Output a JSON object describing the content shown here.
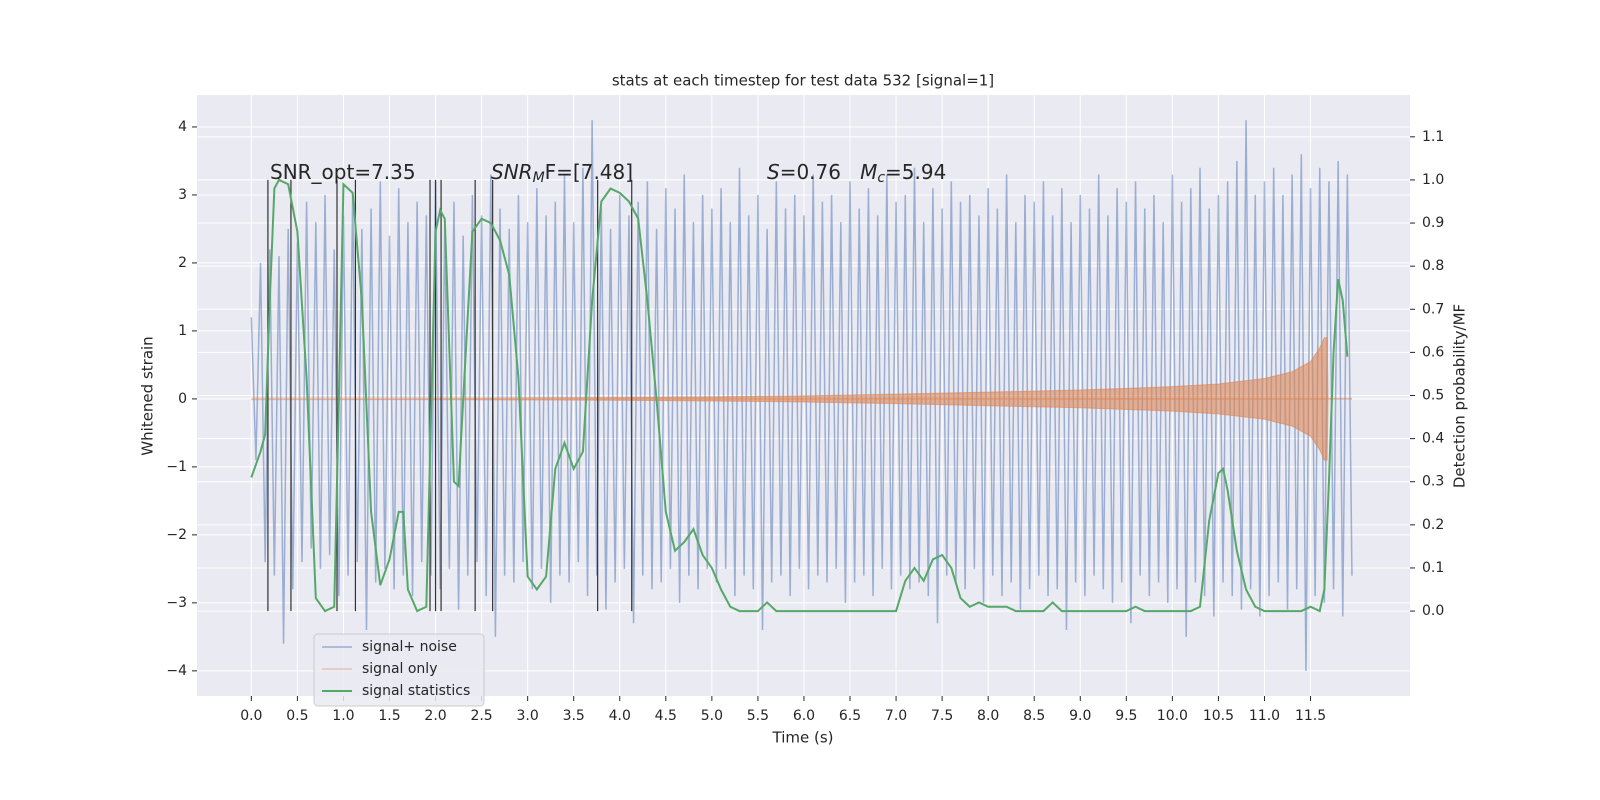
{
  "chart_data": {
    "type": "line",
    "title": "stats at each timestep for test data 532 [signal=1]",
    "x_label": "Time (s)",
    "y_label": "Whitened strain",
    "y2_label": "Detection probability/MF",
    "xlim": [
      -0.59,
      12.58
    ],
    "ylim": [
      -4.37,
      4.47
    ],
    "y2lim": [
      -0.197,
      1.197
    ],
    "grid": true,
    "legend": "lower left",
    "xticks": [
      {
        "value": 0,
        "label": "0.0"
      },
      0.5,
      {
        "value": 1,
        "label": "1.0"
      },
      1.5,
      {
        "value": 2,
        "label": "2.0"
      },
      2.5,
      {
        "value": 3,
        "label": "3.0"
      },
      3.5,
      {
        "value": 4,
        "label": "4.0"
      },
      4.5,
      {
        "value": 5,
        "label": "5.0"
      },
      5.5,
      {
        "value": 6,
        "label": "6.0"
      },
      6.5,
      {
        "value": 7,
        "label": "7.0"
      },
      7.5,
      {
        "value": 8,
        "label": "8.0"
      },
      8.5,
      {
        "value": 9,
        "label": "9.0"
      },
      9.5,
      {
        "value": 10,
        "label": "10.0"
      },
      10.5,
      {
        "value": 11,
        "label": "11.0"
      },
      11.5
    ],
    "yticks": [
      {
        "value": -4,
        "label": "−4"
      },
      {
        "value": -3,
        "label": "−3"
      },
      {
        "value": -2,
        "label": "−2"
      },
      {
        "value": -1,
        "label": "−1"
      },
      0,
      1,
      2,
      3,
      4
    ],
    "y2ticks": [
      {
        "value": 0,
        "label": "0.0"
      },
      0.1,
      0.2,
      0.3,
      0.4,
      0.5,
      0.6,
      0.7,
      0.8,
      0.9,
      {
        "value": 1,
        "label": "1.0"
      },
      1.1
    ],
    "annotations": [
      [
        "SNR_opt=7.35"
      ],
      [
        "SNR",
        "M",
        "F=[7.48]"
      ],
      [
        "S",
        "=0.76   ",
        "M",
        "c",
        "=5.94"
      ]
    ],
    "vlines": {
      "x": [
        0.18,
        0.43,
        0.93,
        1.13,
        1.94,
        2.0,
        2.06,
        2.43,
        2.62,
        3.76,
        4.13
      ],
      "ymin": 0,
      "ymax": 1,
      "color": "#333333"
    },
    "series": [
      {
        "name": "signal+ noise",
        "color": "#4c72b0",
        "x": [
          0,
          0.05,
          0.1,
          0.15,
          0.2,
          0.25,
          0.3,
          0.35,
          0.4,
          0.45,
          0.5,
          0.55,
          0.6,
          0.65,
          0.7,
          0.75,
          0.8,
          0.85,
          0.9,
          0.95,
          1,
          1.05,
          1.1,
          1.15,
          1.2,
          1.25,
          1.3,
          1.35,
          1.4,
          1.45,
          1.5,
          1.55,
          1.6,
          1.65,
          1.7,
          1.75,
          1.8,
          1.85,
          1.9,
          1.95,
          2,
          2.05,
          2.1,
          2.15,
          2.2,
          2.25,
          2.3,
          2.35,
          2.4,
          2.45,
          2.5,
          2.55,
          2.6,
          2.65,
          2.7,
          2.75,
          2.8,
          2.85,
          2.9,
          2.95,
          3,
          3.05,
          3.1,
          3.15,
          3.2,
          3.25,
          3.3,
          3.35,
          3.4,
          3.45,
          3.5,
          3.55,
          3.6,
          3.65,
          3.7,
          3.75,
          3.8,
          3.85,
          3.9,
          3.95,
          4,
          4.05,
          4.1,
          4.15,
          4.2,
          4.25,
          4.3,
          4.35,
          4.4,
          4.45,
          4.5,
          4.55,
          4.6,
          4.65,
          4.7,
          4.75,
          4.8,
          4.85,
          4.9,
          4.95,
          5,
          5.05,
          5.1,
          5.15,
          5.2,
          5.25,
          5.3,
          5.35,
          5.4,
          5.45,
          5.5,
          5.55,
          5.6,
          5.65,
          5.7,
          5.75,
          5.8,
          5.85,
          5.9,
          5.95,
          6,
          6.05,
          6.1,
          6.15,
          6.2,
          6.25,
          6.3,
          6.35,
          6.4,
          6.45,
          6.5,
          6.55,
          6.6,
          6.65,
          6.7,
          6.75,
          6.8,
          6.85,
          6.9,
          6.95,
          7,
          7.05,
          7.1,
          7.15,
          7.2,
          7.25,
          7.3,
          7.35,
          7.4,
          7.45,
          7.5,
          7.55,
          7.6,
          7.65,
          7.7,
          7.75,
          7.8,
          7.85,
          7.9,
          7.95,
          8,
          8.05,
          8.1,
          8.15,
          8.2,
          8.25,
          8.3,
          8.35,
          8.4,
          8.45,
          8.5,
          8.55,
          8.6,
          8.65,
          8.7,
          8.75,
          8.8,
          8.85,
          8.9,
          8.95,
          9,
          9.05,
          9.1,
          9.15,
          9.2,
          9.25,
          9.3,
          9.35,
          9.4,
          9.45,
          9.5,
          9.55,
          9.6,
          9.65,
          9.7,
          9.75,
          9.8,
          9.85,
          9.9,
          9.95,
          10,
          10.05,
          10.1,
          10.15,
          10.2,
          10.25,
          10.3,
          10.35,
          10.4,
          10.45,
          10.5,
          10.55,
          10.6,
          10.65,
          10.7,
          10.75,
          10.8,
          10.85,
          10.9,
          10.95,
          11,
          11.05,
          11.1,
          11.15,
          11.2,
          11.25,
          11.3,
          11.35,
          11.4,
          11.45,
          11.5,
          11.55,
          11.6,
          11.65,
          11.7,
          11.75,
          11.8,
          11.85,
          11.9,
          11.95
        ],
        "values": [
          1.2,
          -0.9,
          2.0,
          -2.4,
          2.2,
          -2.6,
          2.1,
          -3.6,
          2.5,
          -2.8,
          2.3,
          -2.4,
          2.9,
          -2.2,
          2.6,
          -2.5,
          3.0,
          -2.3,
          2.2,
          -2.9,
          2.7,
          -2.6,
          3.0,
          -2.4,
          2.5,
          -3.4,
          2.8,
          -2.7,
          3.2,
          -2.5,
          2.4,
          -2.8,
          3.1,
          -2.6,
          2.6,
          -2.9,
          2.9,
          -2.4,
          2.7,
          -2.6,
          3.2,
          -2.8,
          2.6,
          -2.5,
          2.9,
          -3.1,
          2.4,
          -2.6,
          3.0,
          -2.4,
          2.7,
          -2.9,
          3.3,
          -3.5,
          2.8,
          -2.6,
          2.5,
          -2.7,
          3.0,
          -2.4,
          2.6,
          -2.8,
          3.1,
          -2.5,
          2.7,
          -3.0,
          2.9,
          -2.6,
          3.3,
          -2.7,
          2.6,
          -2.4,
          3.4,
          -2.9,
          4.1,
          -2.6,
          2.8,
          -3.1,
          2.5,
          -2.7,
          3.0,
          -2.5,
          2.7,
          -3.3,
          2.9,
          -2.6,
          3.2,
          -2.8,
          2.5,
          -2.7,
          3.1,
          -2.5,
          2.8,
          -3.0,
          3.3,
          -2.6,
          2.6,
          -2.8,
          3.0,
          -2.5,
          2.8,
          -2.7,
          3.1,
          -2.5,
          2.6,
          -2.9,
          3.4,
          -2.6,
          2.7,
          -2.8,
          3.0,
          -3.4,
          2.5,
          -2.7,
          3.2,
          -2.6,
          2.8,
          -2.9,
          3.0,
          -2.5,
          2.7,
          -2.8,
          3.3,
          -2.6,
          2.9,
          -2.7,
          3.0,
          -2.5,
          2.6,
          -3.0,
          3.2,
          -2.7,
          2.8,
          -2.6,
          3.1,
          -2.9,
          2.7,
          -2.5,
          3.3,
          -2.8,
          2.9,
          -2.6,
          3.0,
          -2.8,
          3.4,
          -2.7,
          2.6,
          -2.9,
          3.1,
          -3.3,
          2.8,
          -2.6,
          3.2,
          -2.7,
          2.9,
          -2.8,
          3.0,
          -2.5,
          2.7,
          -3.0,
          3.1,
          -2.6,
          2.8,
          -2.9,
          3.3,
          -2.7,
          2.6,
          -3.1,
          3.0,
          -2.8,
          2.9,
          -2.6,
          3.2,
          -2.9,
          2.7,
          -2.8,
          3.1,
          -3.4,
          2.6,
          -2.7,
          3.0,
          -2.9,
          2.8,
          -2.6,
          3.3,
          -2.8,
          2.7,
          -3.0,
          3.1,
          -2.7,
          2.9,
          -3.3,
          3.2,
          -2.6,
          2.8,
          -2.9,
          3.0,
          -2.7,
          2.6,
          -3.0,
          3.3,
          -2.8,
          2.9,
          -3.5,
          3.1,
          -2.7,
          3.4,
          -2.9,
          2.8,
          -3.2,
          3.0,
          -2.7,
          3.2,
          -2.9,
          3.5,
          -3.1,
          4.1,
          -2.8,
          3.0,
          -3.2,
          3.2,
          -2.9,
          3.4,
          -2.7,
          3.0,
          -3.1,
          3.3,
          -2.8,
          3.6,
          -4.0,
          3.1,
          -2.9,
          3.4,
          -3.0,
          3.2,
          -2.8,
          3.5,
          -3.2,
          3.3,
          -2.6
        ]
      },
      {
        "name": "signal only",
        "color": "#dd8452",
        "x": [
          0,
          1,
          2,
          3,
          4,
          5,
          6,
          7,
          8,
          9,
          10,
          10.5,
          11,
          11.3,
          11.5,
          11.6,
          11.65,
          11.68,
          11.69,
          11.95
        ],
        "values": [
          0.01,
          0.01,
          0.01,
          0.015,
          0.02,
          0.03,
          0.045,
          0.07,
          0.1,
          0.13,
          0.18,
          0.22,
          0.3,
          0.4,
          0.55,
          0.75,
          0.9,
          0.9,
          0,
          0
        ]
      },
      {
        "name": "signal statistics",
        "color": "#55a868",
        "axis": "y2",
        "x": [
          0,
          0.1,
          0.15,
          0.2,
          0.25,
          0.3,
          0.4,
          0.5,
          0.6,
          0.7,
          0.8,
          0.9,
          0.95,
          1.0,
          1.1,
          1.2,
          1.3,
          1.4,
          1.5,
          1.6,
          1.65,
          1.7,
          1.8,
          1.9,
          2.0,
          2.05,
          2.1,
          2.2,
          2.25,
          2.3,
          2.4,
          2.5,
          2.6,
          2.7,
          2.8,
          2.9,
          3.0,
          3.1,
          3.2,
          3.3,
          3.4,
          3.5,
          3.6,
          3.7,
          3.8,
          3.9,
          4.0,
          4.1,
          4.2,
          4.3,
          4.4,
          4.5,
          4.6,
          4.7,
          4.8,
          4.9,
          5.0,
          5.1,
          5.2,
          5.3,
          5.5,
          5.6,
          5.7,
          5.8,
          7.0,
          7.1,
          7.2,
          7.3,
          7.4,
          7.5,
          7.6,
          7.7,
          7.8,
          7.9,
          8.0,
          8.2,
          8.3,
          8.4,
          8.6,
          8.7,
          8.8,
          8.9,
          9.5,
          9.6,
          9.7,
          10.2,
          10.3,
          10.4,
          10.5,
          10.55,
          10.6,
          10.7,
          10.8,
          10.9,
          11.0,
          11.4,
          11.5,
          11.6,
          11.65,
          11.7,
          11.75,
          11.8,
          11.85,
          11.9
        ],
        "values": [
          0.31,
          0.37,
          0.41,
          0.72,
          0.98,
          1.0,
          0.99,
          0.88,
          0.54,
          0.03,
          0.0,
          0.01,
          0.49,
          0.99,
          0.97,
          0.72,
          0.23,
          0.06,
          0.12,
          0.23,
          0.23,
          0.05,
          0.0,
          0.01,
          0.88,
          0.93,
          0.91,
          0.3,
          0.29,
          0.49,
          0.88,
          0.91,
          0.9,
          0.86,
          0.78,
          0.54,
          0.08,
          0.05,
          0.08,
          0.33,
          0.39,
          0.33,
          0.37,
          0.72,
          0.95,
          0.98,
          0.97,
          0.95,
          0.91,
          0.72,
          0.49,
          0.23,
          0.14,
          0.16,
          0.19,
          0.13,
          0.1,
          0.05,
          0.01,
          0,
          0,
          0.02,
          0,
          0,
          0,
          0.07,
          0.1,
          0.07,
          0.12,
          0.13,
          0.1,
          0.03,
          0.01,
          0.02,
          0.01,
          0.01,
          0,
          0,
          0,
          0.02,
          0,
          0,
          0,
          0.01,
          0,
          0,
          0.01,
          0.21,
          0.32,
          0.33,
          0.28,
          0.14,
          0.05,
          0.01,
          0,
          0,
          0.01,
          0,
          0.05,
          0.3,
          0.6,
          0.77,
          0.72,
          0.59
        ]
      }
    ]
  }
}
